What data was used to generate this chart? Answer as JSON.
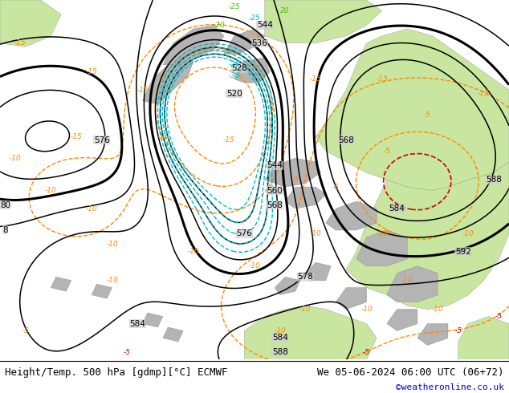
{
  "title_left": "Height/Temp. 500 hPa [gdmp][°C] ECMWF",
  "title_right": "We 05-06-2024 06:00 UTC (06+72)",
  "credit": "©weatheronline.co.uk",
  "bg_color": "#d0d0d0",
  "land_green": "#c8e6a0",
  "land_gray": "#b4b4b4",
  "footer_bg": "#ffffff",
  "footer_text_color": "#000000",
  "credit_color": "#0000cc",
  "font_size_footer": 9,
  "z500_color": "#000000",
  "temp_orange": "#ff8800",
  "temp_green": "#44bb00",
  "temp_cyan": "#00bbcc",
  "temp_red": "#cc0000"
}
